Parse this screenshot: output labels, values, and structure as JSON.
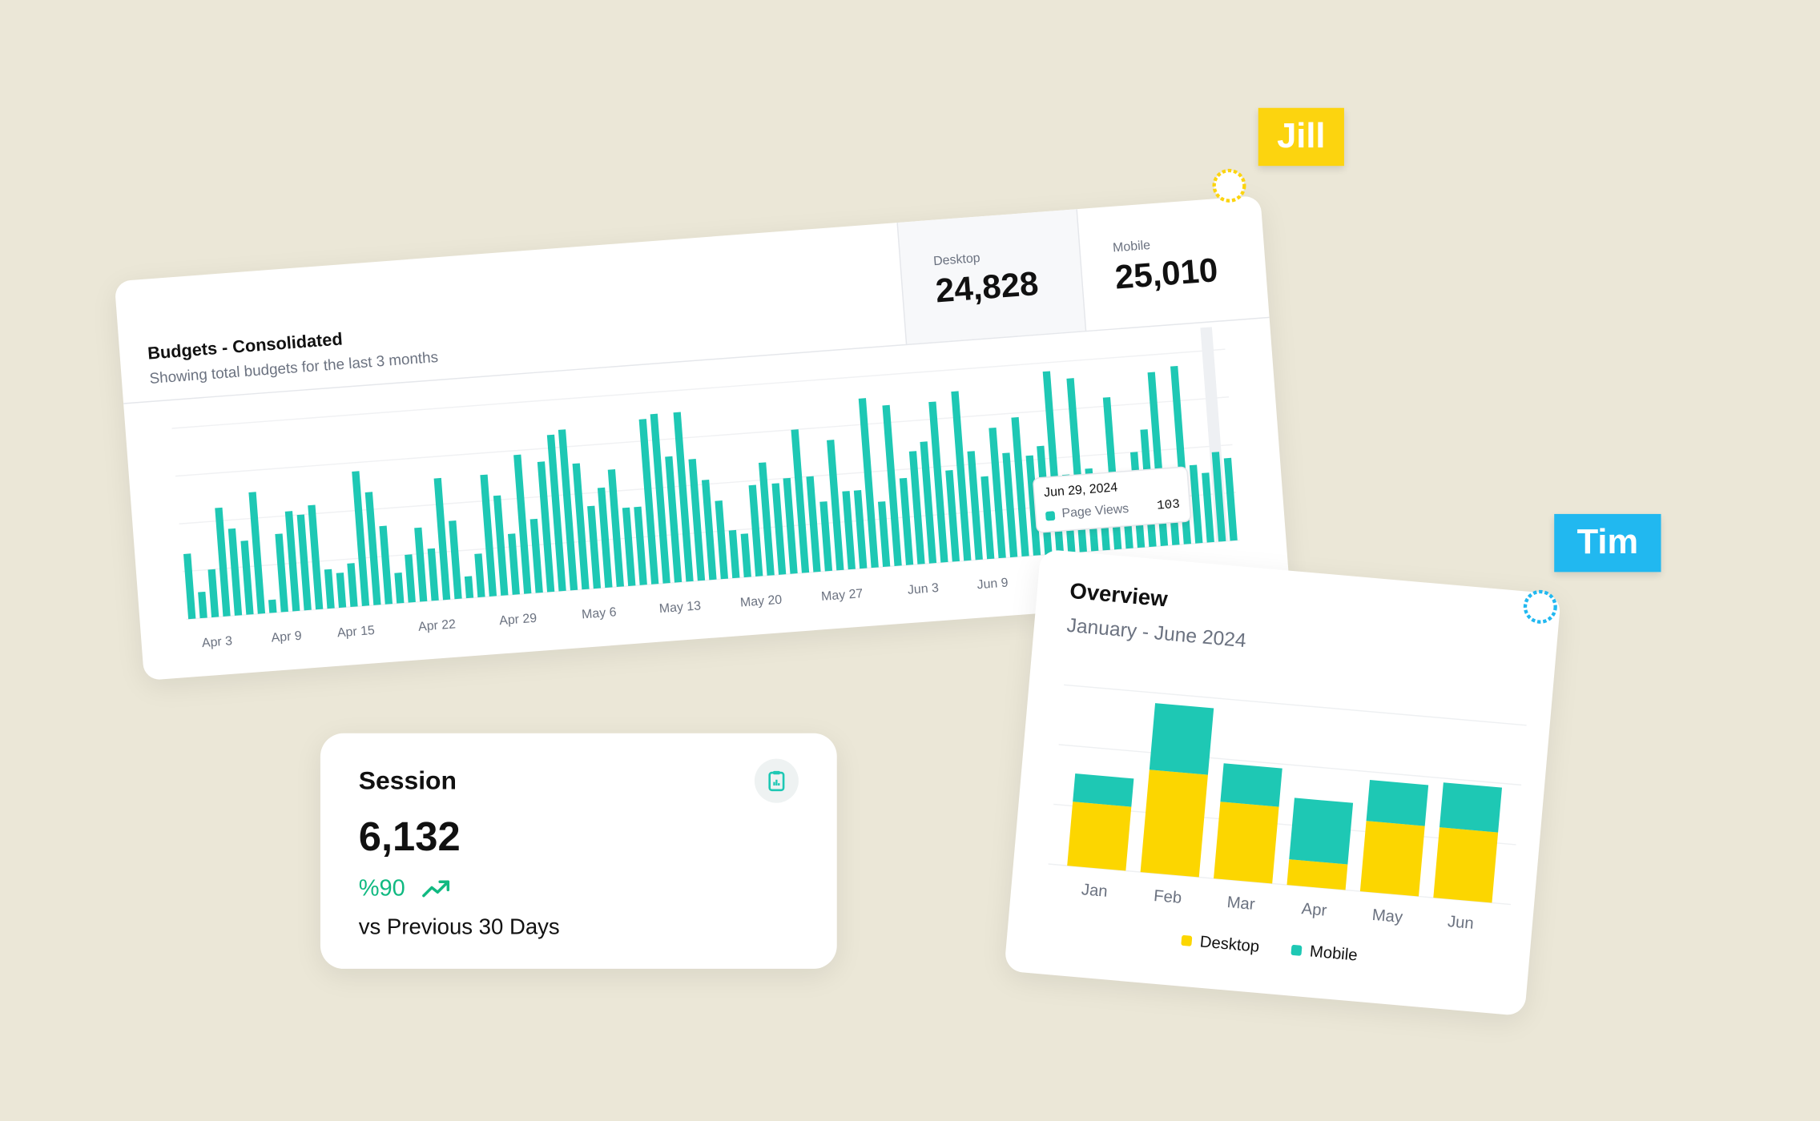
{
  "badges": {
    "jill": "Jill",
    "tim": "Tim"
  },
  "session": {
    "title": "Session",
    "value": "6,132",
    "change": "%90",
    "comparison": "vs Previous 30 Days"
  },
  "chart_data": [
    {
      "type": "bar",
      "title": "Budgets - Consolidated",
      "subtitle": "Showing total budgets for the last 3 months",
      "stats": [
        {
          "label": "Desktop",
          "value": "24,828"
        },
        {
          "label": "Mobile",
          "value": "25,010"
        }
      ],
      "categories": [
        null,
        null,
        "Apr 3",
        null,
        null,
        null,
        null,
        null,
        "Apr 9",
        null,
        null,
        null,
        null,
        null,
        "Apr 15",
        null,
        null,
        null,
        null,
        null,
        null,
        "Apr 22",
        null,
        null,
        null,
        null,
        null,
        null,
        "Apr 29",
        null,
        null,
        null,
        null,
        null,
        null,
        "May 6",
        null,
        null,
        null,
        null,
        null,
        null,
        "May 13",
        null,
        null,
        null,
        null,
        null,
        null,
        "May 20",
        null,
        null,
        null,
        null,
        null,
        null,
        "May 27",
        null,
        null,
        null,
        null,
        null,
        null,
        "Jun 3",
        null,
        null,
        null,
        null,
        null,
        "Jun 9",
        null,
        null,
        null,
        null,
        null,
        null,
        null,
        null,
        null,
        null,
        null,
        null,
        null,
        null,
        null,
        null,
        null,
        null,
        null,
        null,
        null
      ],
      "values": [
        75,
        30,
        55,
        125,
        100,
        85,
        140,
        15,
        90,
        115,
        110,
        120,
        45,
        40,
        50,
        155,
        130,
        90,
        35,
        55,
        85,
        60,
        140,
        90,
        25,
        50,
        140,
        115,
        70,
        160,
        85,
        150,
        180,
        185,
        145,
        95,
        115,
        135,
        90,
        90,
        190,
        195,
        145,
        195,
        140,
        115,
        90,
        55,
        50,
        105,
        130,
        105,
        110,
        165,
        110,
        80,
        150,
        90,
        90,
        195,
        75,
        185,
        100,
        130,
        140,
        185,
        105,
        195,
        125,
        95,
        150,
        120,
        160,
        115,
        125,
        210,
        90,
        200,
        95,
        80,
        175,
        35,
        110,
        135,
        200,
        80,
        205,
        90,
        80,
        103,
        95
      ],
      "color": "#1ec8b4",
      "ylim": [
        0,
        220
      ],
      "tooltip": {
        "date": "Jun 29, 2024",
        "label": "Page Views",
        "index": 89
      }
    },
    {
      "type": "stacked_bar",
      "title": "Overview",
      "subtitle": "January - June 2024",
      "categories": [
        "Jan",
        "Feb",
        "Mar",
        "Apr",
        "May",
        "Jun"
      ],
      "series": [
        {
          "name": "Desktop",
          "color": "#fcd600",
          "values": [
            50,
            80,
            60,
            20,
            55,
            55
          ]
        },
        {
          "name": "Mobile",
          "color": "#1ec8b4",
          "values": [
            22,
            52,
            30,
            48,
            32,
            35
          ]
        }
      ],
      "ylim": [
        0,
        140
      ]
    }
  ]
}
